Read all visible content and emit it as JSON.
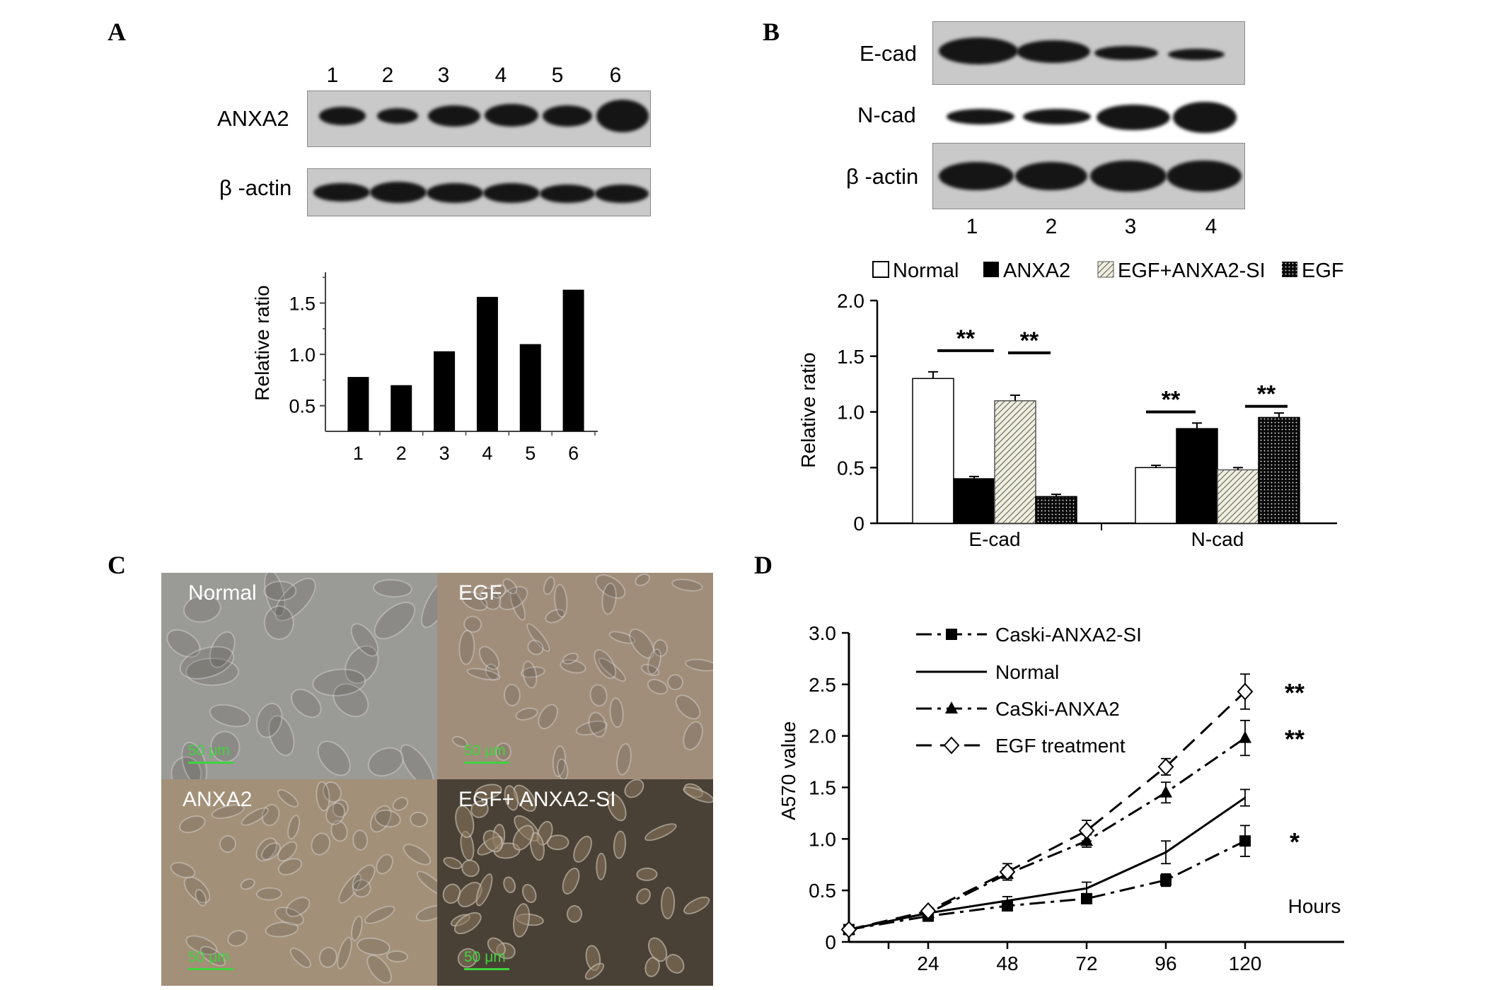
{
  "panel_labels": {
    "a": "A",
    "b": "B",
    "c": "C",
    "d": "D"
  },
  "panel_a": {
    "lanes": [
      "1",
      "2",
      "3",
      "4",
      "5",
      "6"
    ],
    "blot_rows": [
      "ANXA2",
      "β -actin"
    ]
  },
  "panel_b": {
    "blot_rows": [
      "E-cad",
      "N-cad",
      "β -actin"
    ],
    "lanes": [
      "1",
      "2",
      "3",
      "4"
    ],
    "legend": [
      "Normal",
      "ANXA2",
      "EGF+ANXA2-SI",
      "EGF"
    ],
    "significance": "**"
  },
  "panel_c": {
    "images": [
      {
        "label": "Normal",
        "scale": "50 μm",
        "tone": "#9a9a96"
      },
      {
        "label": "EGF",
        "scale": "50 μm",
        "tone": "#a18e7a"
      },
      {
        "label": "ANXA2",
        "scale": "50 μm",
        "tone": "#a39078"
      },
      {
        "label": "EGF+ ANXA2-SI",
        "scale": "50 μm",
        "tone": "#4a4136"
      }
    ]
  },
  "chart_data": [
    {
      "type": "bar",
      "panel": "A",
      "categories": [
        "1",
        "2",
        "3",
        "4",
        "5",
        "6"
      ],
      "values": [
        0.78,
        0.7,
        1.03,
        1.56,
        1.1,
        1.63
      ],
      "ylabel": "Relative ratio",
      "yticks": [
        "0.5",
        "1.0",
        "1.5"
      ],
      "ylim": [
        0.25,
        1.8
      ],
      "color": "#000000"
    },
    {
      "type": "bar",
      "panel": "B",
      "categories": [
        "E-cad",
        "N-cad"
      ],
      "series": [
        {
          "name": "Normal",
          "values": [
            1.3,
            0.5
          ],
          "errors": [
            0.06,
            0.02
          ]
        },
        {
          "name": "ANXA2",
          "values": [
            0.4,
            0.85
          ],
          "errors": [
            0.02,
            0.05
          ]
        },
        {
          "name": "EGF+ANXA2-SI",
          "values": [
            1.1,
            0.48
          ],
          "errors": [
            0.05,
            0.02
          ]
        },
        {
          "name": "EGF",
          "values": [
            0.24,
            0.95
          ],
          "errors": [
            0.02,
            0.04
          ]
        }
      ],
      "ylabel": "Relative ratio",
      "yticks": [
        "0",
        "0.5",
        "1.0",
        "1.5",
        "2.0"
      ],
      "ylim": [
        0,
        2.0
      ],
      "annotations": [
        "**",
        "**",
        "**",
        "**"
      ]
    },
    {
      "type": "line",
      "panel": "D",
      "x": [
        0,
        24,
        48,
        72,
        96,
        120
      ],
      "xticks": [
        "24",
        "48",
        "72",
        "96",
        "120"
      ],
      "xlabel": "Hours",
      "ylabel": "A570 value",
      "yticks": [
        "0",
        "0.5",
        "1.0",
        "1.5",
        "2.0",
        "2.5",
        "3.0"
      ],
      "ylim": [
        0,
        3.0
      ],
      "series": [
        {
          "name": "Caski-ANXA2-SI",
          "values": [
            0.12,
            0.25,
            0.35,
            0.42,
            0.6,
            0.98
          ],
          "errors": [
            0.02,
            0.03,
            0.03,
            0.04,
            0.06,
            0.15
          ],
          "marker": "square",
          "dash": "dashdot",
          "sig": "*"
        },
        {
          "name": "Normal",
          "values": [
            0.12,
            0.28,
            0.4,
            0.52,
            0.87,
            1.4
          ],
          "errors": [
            0.02,
            0.03,
            0.04,
            0.06,
            0.11,
            0.08
          ],
          "marker": "none",
          "dash": "solid",
          "sig": ""
        },
        {
          "name": "CaSki-ANXA2",
          "values": [
            0.12,
            0.28,
            0.66,
            0.98,
            1.45,
            1.98
          ],
          "errors": [
            0.02,
            0.03,
            0.06,
            0.06,
            0.1,
            0.17
          ],
          "marker": "triangle",
          "dash": "dashdot",
          "sig": "**"
        },
        {
          "name": "EGF treatment",
          "values": [
            0.12,
            0.3,
            0.68,
            1.08,
            1.7,
            2.43
          ],
          "errors": [
            0.02,
            0.03,
            0.08,
            0.1,
            0.08,
            0.17
          ],
          "marker": "diamond",
          "dash": "dash",
          "sig": "**"
        }
      ]
    }
  ]
}
